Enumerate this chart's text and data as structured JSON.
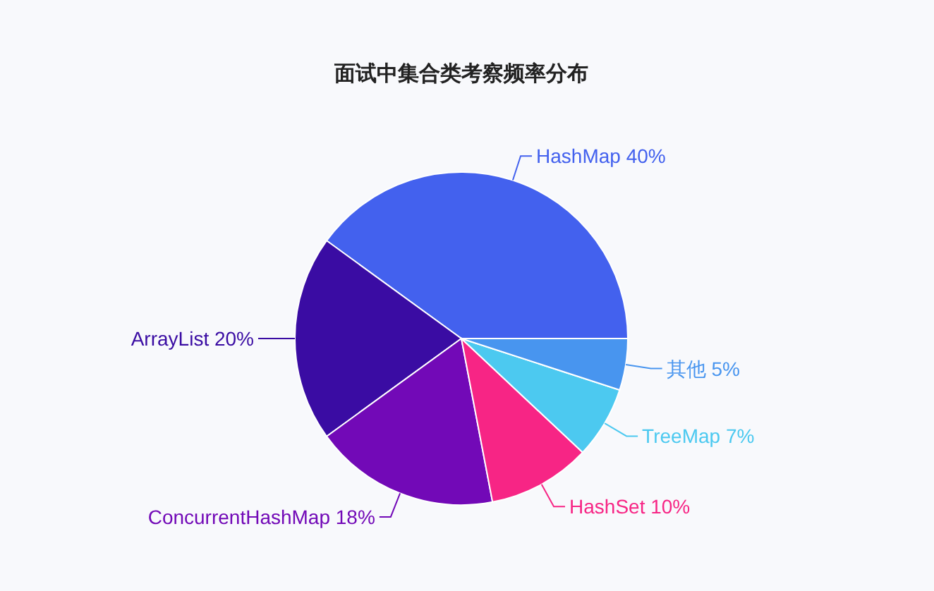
{
  "chart_data": {
    "type": "pie",
    "title": "面试中集合类考察频率分布",
    "categories": [
      "HashMap",
      "ArrayList",
      "ConcurrentHashMap",
      "HashSet",
      "TreeMap",
      "其他"
    ],
    "values": [
      40,
      20,
      18,
      10,
      7,
      5
    ],
    "value_labels": [
      "40%",
      "20%",
      "18%",
      "10%",
      "7%",
      "5%"
    ],
    "colors": [
      "#4361ee",
      "#3a0ca3",
      "#7209b7",
      "#f72585",
      "#4cc9f0",
      "#4895ef"
    ]
  }
}
